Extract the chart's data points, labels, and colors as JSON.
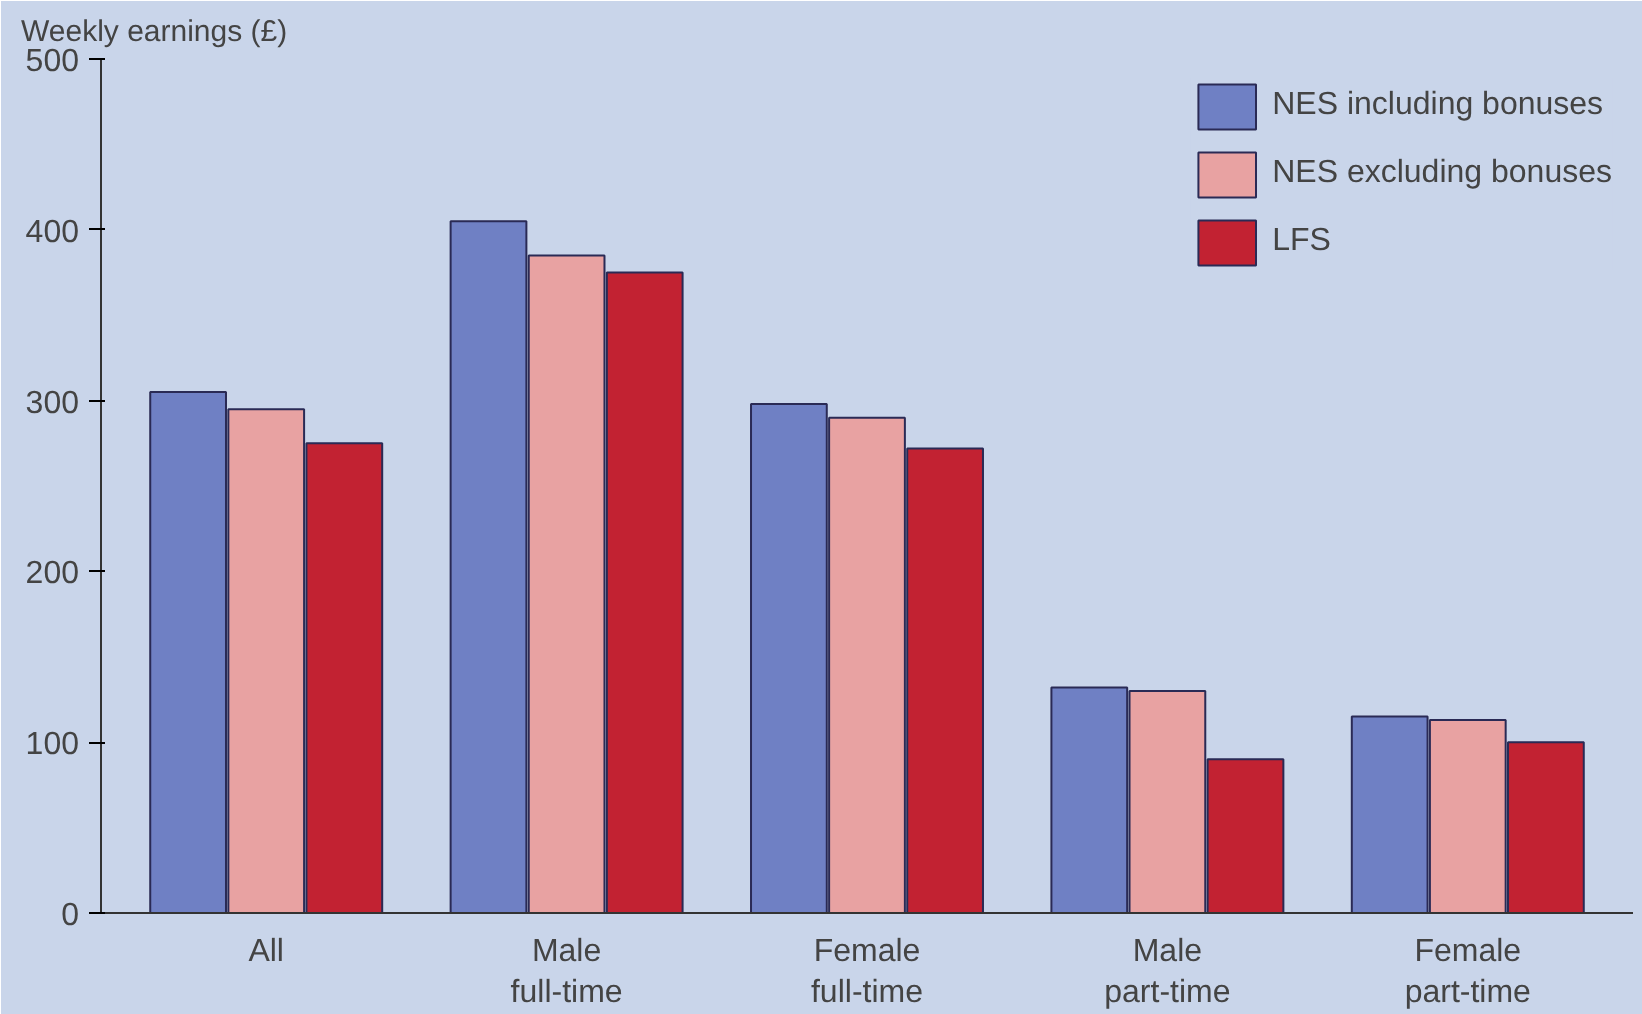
{
  "chart_data": {
    "type": "bar",
    "ylabel": "Weekly earnings (£)",
    "categories": [
      "All",
      "Male\nfull-time",
      "Female\nfull-time",
      "Male\npart-time",
      "Female\npart-time"
    ],
    "series": [
      {
        "name": "NES including bonuses",
        "color": "#6f80c4",
        "values": [
          305,
          405,
          298,
          132,
          115
        ]
      },
      {
        "name": "NES excluding bonuses",
        "color": "#e8a2a2",
        "values": [
          295,
          385,
          290,
          130,
          113
        ]
      },
      {
        "name": "LFS",
        "color": "#c22232",
        "values": [
          275,
          375,
          272,
          90,
          100
        ]
      }
    ],
    "ylim": [
      0,
      500
    ],
    "yticks": [
      0,
      100,
      200,
      300,
      400,
      500
    ],
    "grid": false,
    "legend": "top right"
  }
}
